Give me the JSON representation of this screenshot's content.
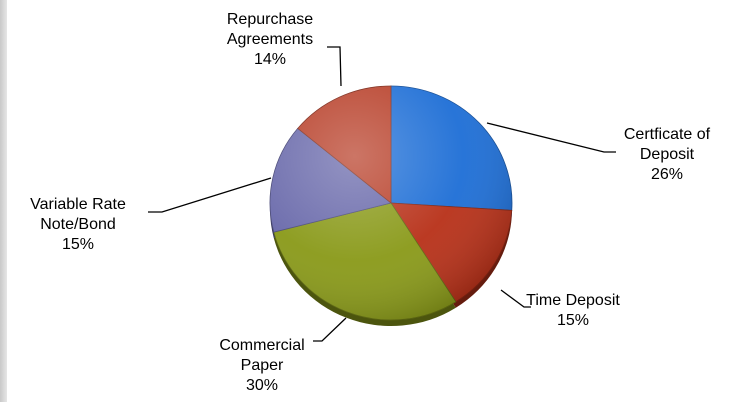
{
  "chart_data": {
    "type": "pie",
    "title": "",
    "slices": [
      {
        "label_lines": [
          "Certficate of",
          "Deposit"
        ],
        "percent_label": "26%",
        "value": 26,
        "color": "#1f6fd6"
      },
      {
        "label_lines": [
          "Time Deposit"
        ],
        "percent_label": "15%",
        "value": 15,
        "color": "#b8321a"
      },
      {
        "label_lines": [
          "Commercial",
          "Paper"
        ],
        "percent_label": "30%",
        "value": 30,
        "color": "#8a9a1a"
      },
      {
        "label_lines": [
          "Variable Rate",
          "Note/Bond"
        ],
        "percent_label": "15%",
        "value": 15,
        "color": "#6a6aab"
      },
      {
        "label_lines": [
          "Repurchase",
          "Agreements"
        ],
        "percent_label": "14%",
        "value": 14,
        "color": "#b8402a"
      }
    ],
    "start_angle_deg": 0,
    "direction": "clockwise",
    "style": "3d-tilted",
    "legend": "none (leader-line labels)"
  }
}
